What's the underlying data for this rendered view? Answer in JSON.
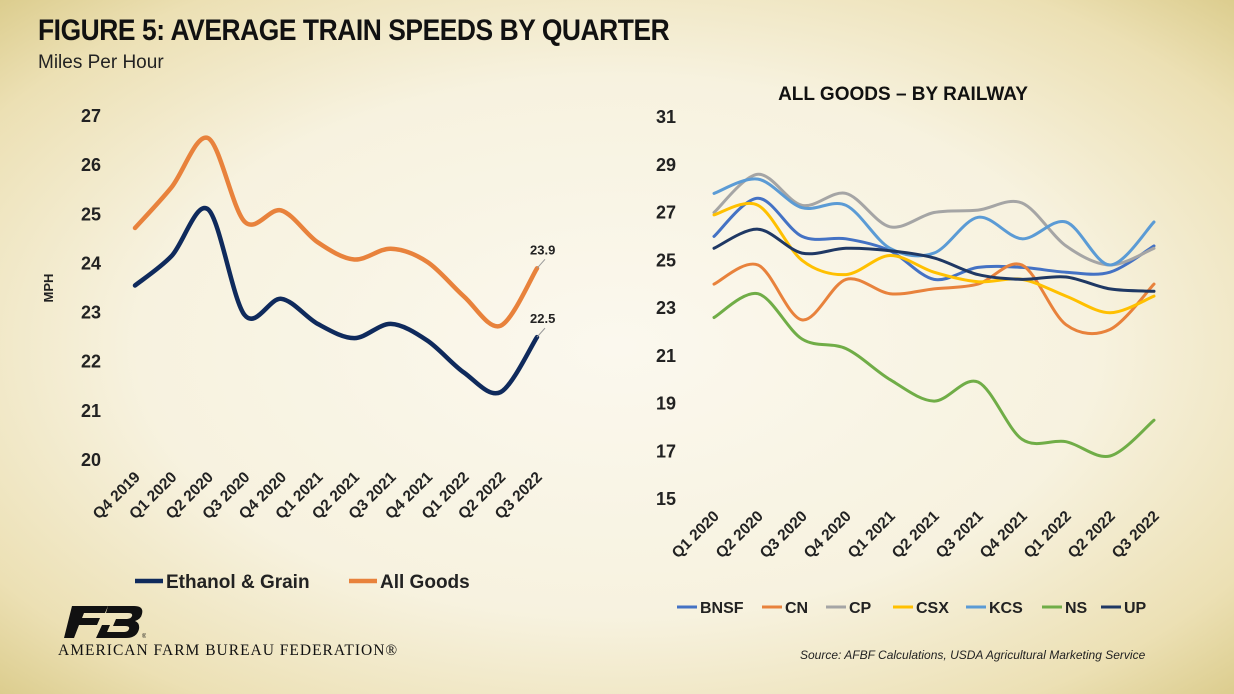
{
  "header": {
    "title": "FIGURE 5: AVERAGE TRAIN SPEEDS BY QUARTER",
    "subtitle": "Miles Per Hour"
  },
  "footer": {
    "organization": "AMERICAN FARM BUREAU FEDERATION®",
    "source": "Source: AFBF Calculations, USDA Agricultural Marketing Service"
  },
  "chart_data": [
    {
      "type": "line",
      "title": "",
      "xlabel": "",
      "ylabel": "MPH",
      "ylim": [
        20,
        27
      ],
      "yticks": [
        20,
        21,
        22,
        23,
        24,
        25,
        26,
        27
      ],
      "categories": [
        "Q4 2019",
        "Q1 2020",
        "Q2 2020",
        "Q3 2020",
        "Q4 2020",
        "Q1 2021",
        "Q2 2021",
        "Q3 2021",
        "Q4 2021",
        "Q1 2022",
        "Q2 2022",
        "Q3 2022"
      ],
      "legend_position": "bottom",
      "grid": false,
      "series": [
        {
          "name": "Ethanol & Grain",
          "color": "#0f2a5c",
          "values": [
            23.55,
            24.15,
            25.1,
            22.95,
            23.28,
            22.77,
            22.48,
            22.77,
            22.43,
            21.78,
            21.38,
            22.5
          ]
        },
        {
          "name": "All Goods",
          "color": "#e8823c",
          "values": [
            24.72,
            25.55,
            26.55,
            24.85,
            25.08,
            24.43,
            24.08,
            24.3,
            24.03,
            23.33,
            22.73,
            23.9
          ]
        }
      ],
      "data_labels": [
        "23.9",
        "22.5"
      ]
    },
    {
      "type": "line",
      "title": "ALL GOODS – BY RAILWAY",
      "xlabel": "",
      "ylabel": "",
      "ylim": [
        15,
        31
      ],
      "yticks": [
        15,
        17,
        19,
        21,
        23,
        25,
        27,
        29,
        31
      ],
      "categories": [
        "Q1 2020",
        "Q2 2020",
        "Q3 2020",
        "Q4 2020",
        "Q1 2021",
        "Q2 2021",
        "Q3 2021",
        "Q4 2021",
        "Q1 2022",
        "Q2 2022",
        "Q3 2022"
      ],
      "legend_position": "bottom",
      "grid": false,
      "series": [
        {
          "name": "BNSF",
          "color": "#4472c4",
          "values": [
            26.0,
            27.6,
            26.0,
            25.9,
            25.4,
            24.2,
            24.7,
            24.7,
            24.5,
            24.5,
            25.6
          ]
        },
        {
          "name": "CN",
          "color": "#e8823c",
          "values": [
            24.0,
            24.8,
            22.5,
            24.2,
            23.6,
            23.8,
            24.0,
            24.8,
            22.3,
            22.1,
            24.0
          ]
        },
        {
          "name": "CP",
          "color": "#a5a5a5",
          "values": [
            27.0,
            28.6,
            27.3,
            27.8,
            26.4,
            27.0,
            27.1,
            27.4,
            25.6,
            24.8,
            25.5
          ]
        },
        {
          "name": "CSX",
          "color": "#ffc000",
          "values": [
            26.9,
            27.3,
            25.0,
            24.4,
            25.2,
            24.5,
            24.1,
            24.2,
            23.5,
            22.8,
            23.5
          ]
        },
        {
          "name": "KCS",
          "color": "#5b9bd5",
          "values": [
            27.8,
            28.4,
            27.2,
            27.3,
            25.5,
            25.3,
            26.8,
            25.9,
            26.6,
            24.8,
            26.6
          ]
        },
        {
          "name": "NS",
          "color": "#70ad47",
          "values": [
            22.6,
            23.6,
            21.7,
            21.3,
            20.0,
            19.1,
            19.9,
            17.5,
            17.4,
            16.8,
            18.3
          ]
        },
        {
          "name": "UP",
          "color": "#1f3864",
          "values": [
            25.5,
            26.3,
            25.3,
            25.5,
            25.4,
            25.1,
            24.4,
            24.2,
            24.3,
            23.8,
            23.7
          ]
        }
      ]
    }
  ]
}
